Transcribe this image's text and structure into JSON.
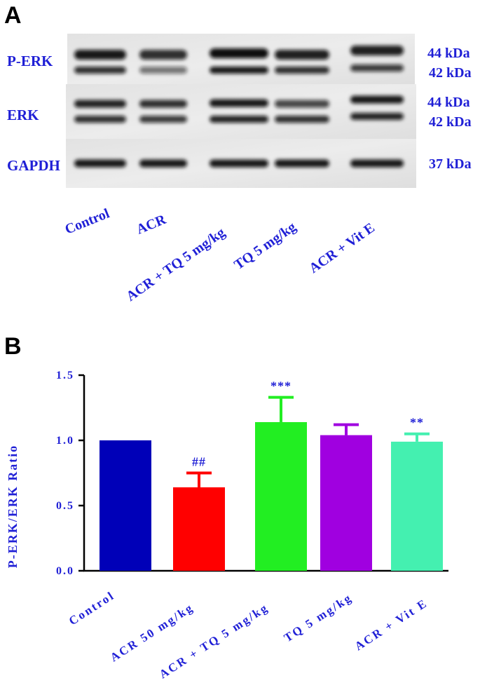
{
  "panel_a": {
    "letter": "A",
    "rows": [
      {
        "label": "P-ERK",
        "kda_top": "44 kDa",
        "kda_bottom": "42 kDa"
      },
      {
        "label": "ERK",
        "kda_top": "44 kDa",
        "kda_bottom": "42 kDa"
      },
      {
        "label": "GAPDH",
        "kda_top": "37 kDa"
      }
    ],
    "lanes": [
      "Control",
      "ACR",
      "ACR + TQ 5 mg/kg",
      "TQ 5 mg/kg",
      "ACR + Vit E"
    ]
  },
  "panel_b": {
    "letter": "B"
  },
  "chart_data": {
    "type": "bar",
    "title": "",
    "ylabel": "P-ERK/ERK Ratio",
    "xlabel": "",
    "ylim": [
      0,
      1.5
    ],
    "yticks": [
      "0.0",
      "0.5",
      "1.0",
      "1.5"
    ],
    "ytick_values": [
      0,
      0.5,
      1.0,
      1.5
    ],
    "categories": [
      "Control",
      "ACR 50 mg/kg",
      "ACR + TQ 5 mg/kg",
      "TQ 5 mg/kg",
      "ACR + Vit E"
    ],
    "values": [
      1.0,
      0.64,
      1.14,
      1.04,
      0.99
    ],
    "errors": [
      0,
      0.11,
      0.19,
      0.08,
      0.06
    ],
    "annotations": [
      "",
      "##",
      "***",
      "",
      "**"
    ],
    "colors": [
      "#0000b8",
      "#ff0000",
      "#22ee22",
      "#a000e0",
      "#44f0b0"
    ]
  }
}
